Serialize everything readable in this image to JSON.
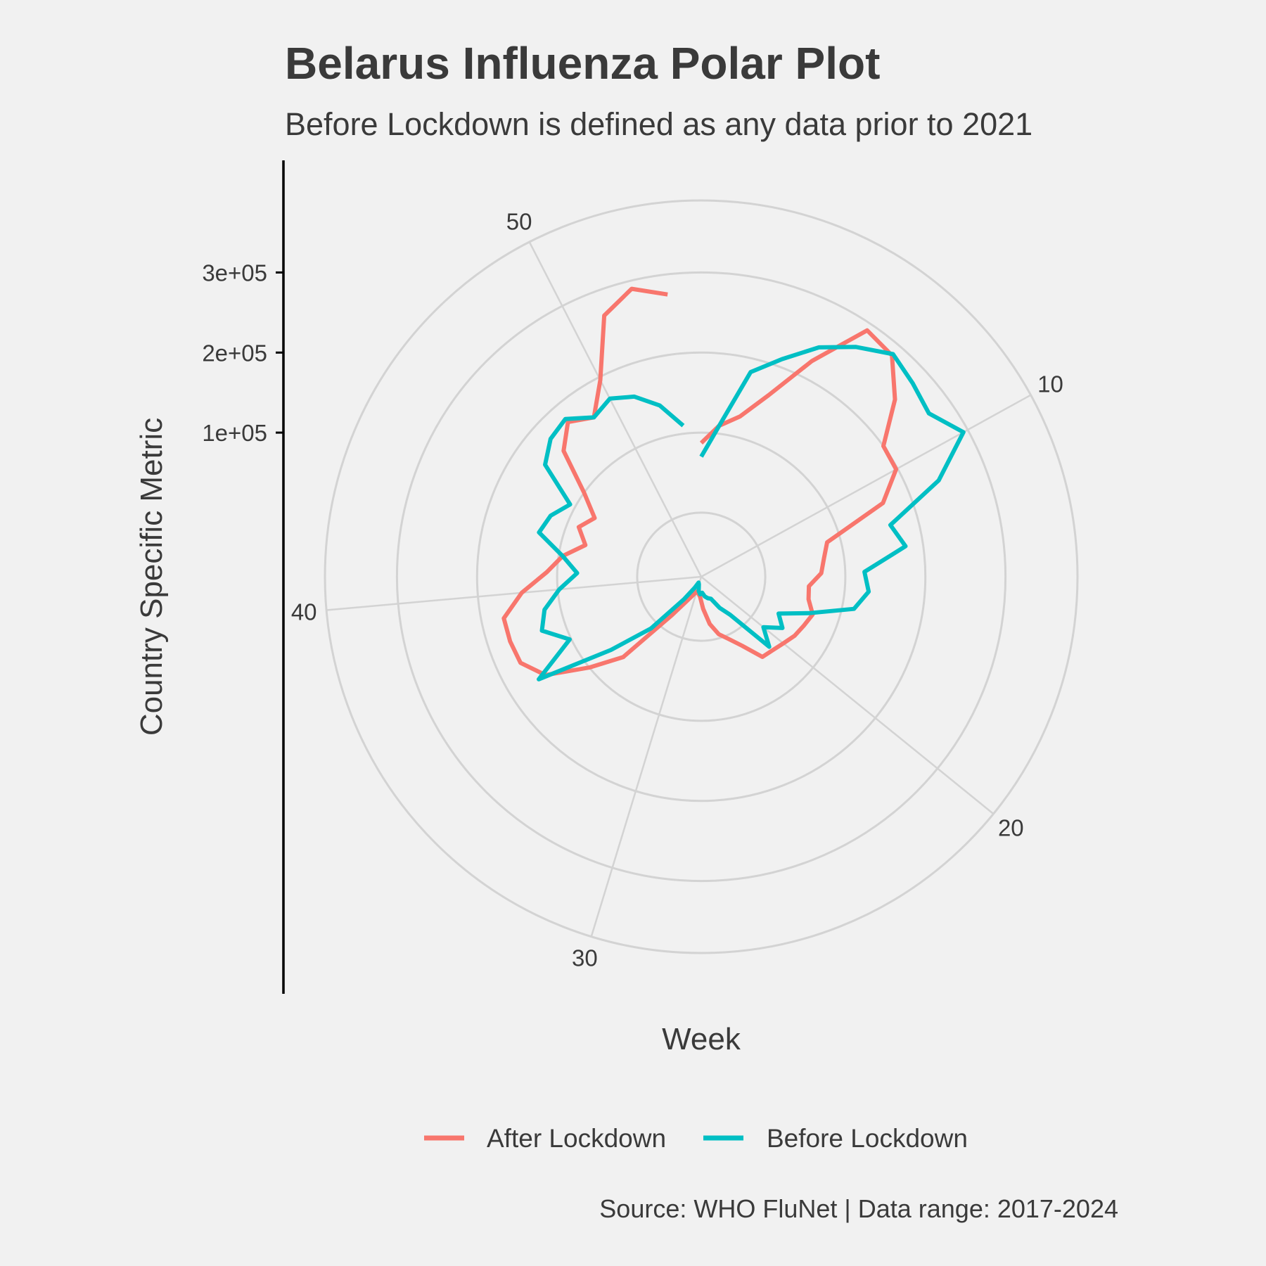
{
  "chart_data": {
    "type": "line",
    "coordinate_system": "polar",
    "title": "Belarus Influenza Polar Plot",
    "subtitle": "Before Lockdown is defined as any data prior to 2021",
    "xlabel": "Week",
    "ylabel": "Country Specific Metric",
    "caption": "Source: WHO FluNet | Data range: 2017-2024",
    "x_ticks": [
      10,
      20,
      30,
      40,
      50
    ],
    "y_ticks": [
      100000,
      200000,
      300000
    ],
    "y_tick_labels": [
      "1e+05",
      "2e+05",
      "3e+05"
    ],
    "xlim": [
      1,
      53
    ],
    "ylim": [
      -80000,
      390000
    ],
    "grid": true,
    "legend_position": "bottom",
    "series": [
      {
        "name": "After Lockdown",
        "color": "#F8766D",
        "x": [
          1,
          2,
          3,
          4,
          5,
          6,
          7,
          8,
          9,
          10,
          11,
          12,
          13,
          14,
          15,
          16,
          17,
          18,
          19,
          20,
          21,
          22,
          23,
          24,
          25,
          26,
          27,
          28,
          29,
          30,
          31,
          32,
          33,
          34,
          35,
          36,
          37,
          38,
          39,
          40,
          41,
          42,
          43,
          44,
          45,
          46,
          47,
          48,
          49,
          50,
          51,
          52,
          53
        ],
        "y": [
          87000,
          110000,
          126000,
          162000,
          223000,
          291000,
          285000,
          248000,
          200000,
          198000,
          165000,
          83000,
          75000,
          70000,
          55000,
          57000,
          67000,
          62000,
          58000,
          52000,
          48000,
          46000,
          20000,
          5000,
          -5000,
          -20000,
          -40000,
          -55000,
          -59000,
          -61000,
          -55000,
          -45000,
          -20000,
          60000,
          100000,
          150000,
          170000,
          172000,
          172000,
          145000,
          113000,
          95000,
          70000,
          85000,
          72000,
          100000,
          153000,
          175000,
          160000,
          196000,
          268000,
          290000,
          275000
        ]
      },
      {
        "name": "Before Lockdown",
        "color": "#00BFC4",
        "x": [
          1,
          2,
          3,
          4,
          5,
          6,
          7,
          8,
          9,
          10,
          11,
          12,
          13,
          14,
          15,
          16,
          17,
          18,
          19,
          20,
          21,
          22,
          23,
          24,
          25,
          26,
          27,
          28,
          29,
          30,
          31,
          32,
          33,
          34,
          35,
          36,
          37,
          38,
          39,
          40,
          41,
          42,
          43,
          44,
          45,
          46,
          47,
          48,
          49,
          50,
          51,
          52,
          53
        ],
        "y": [
          70000,
          110000,
          183000,
          210000,
          242000,
          266000,
          287000,
          278000,
          270000,
          294000,
          240000,
          165000,
          178000,
          124000,
          130000,
          115000,
          62000,
          27000,
          40000,
          20000,
          42000,
          -20000,
          -35000,
          -50000,
          -52000,
          -55000,
          -60000,
          -58000,
          -62000,
          -70000,
          -72000,
          -64000,
          -45000,
          10000,
          65000,
          160000,
          102000,
          130000,
          120000,
          98000,
          75000,
          95000,
          130000,
          123000,
          107000,
          160000,
          175000,
          180000,
          160000,
          170000,
          160000,
          140000,
          110000
        ]
      }
    ]
  }
}
